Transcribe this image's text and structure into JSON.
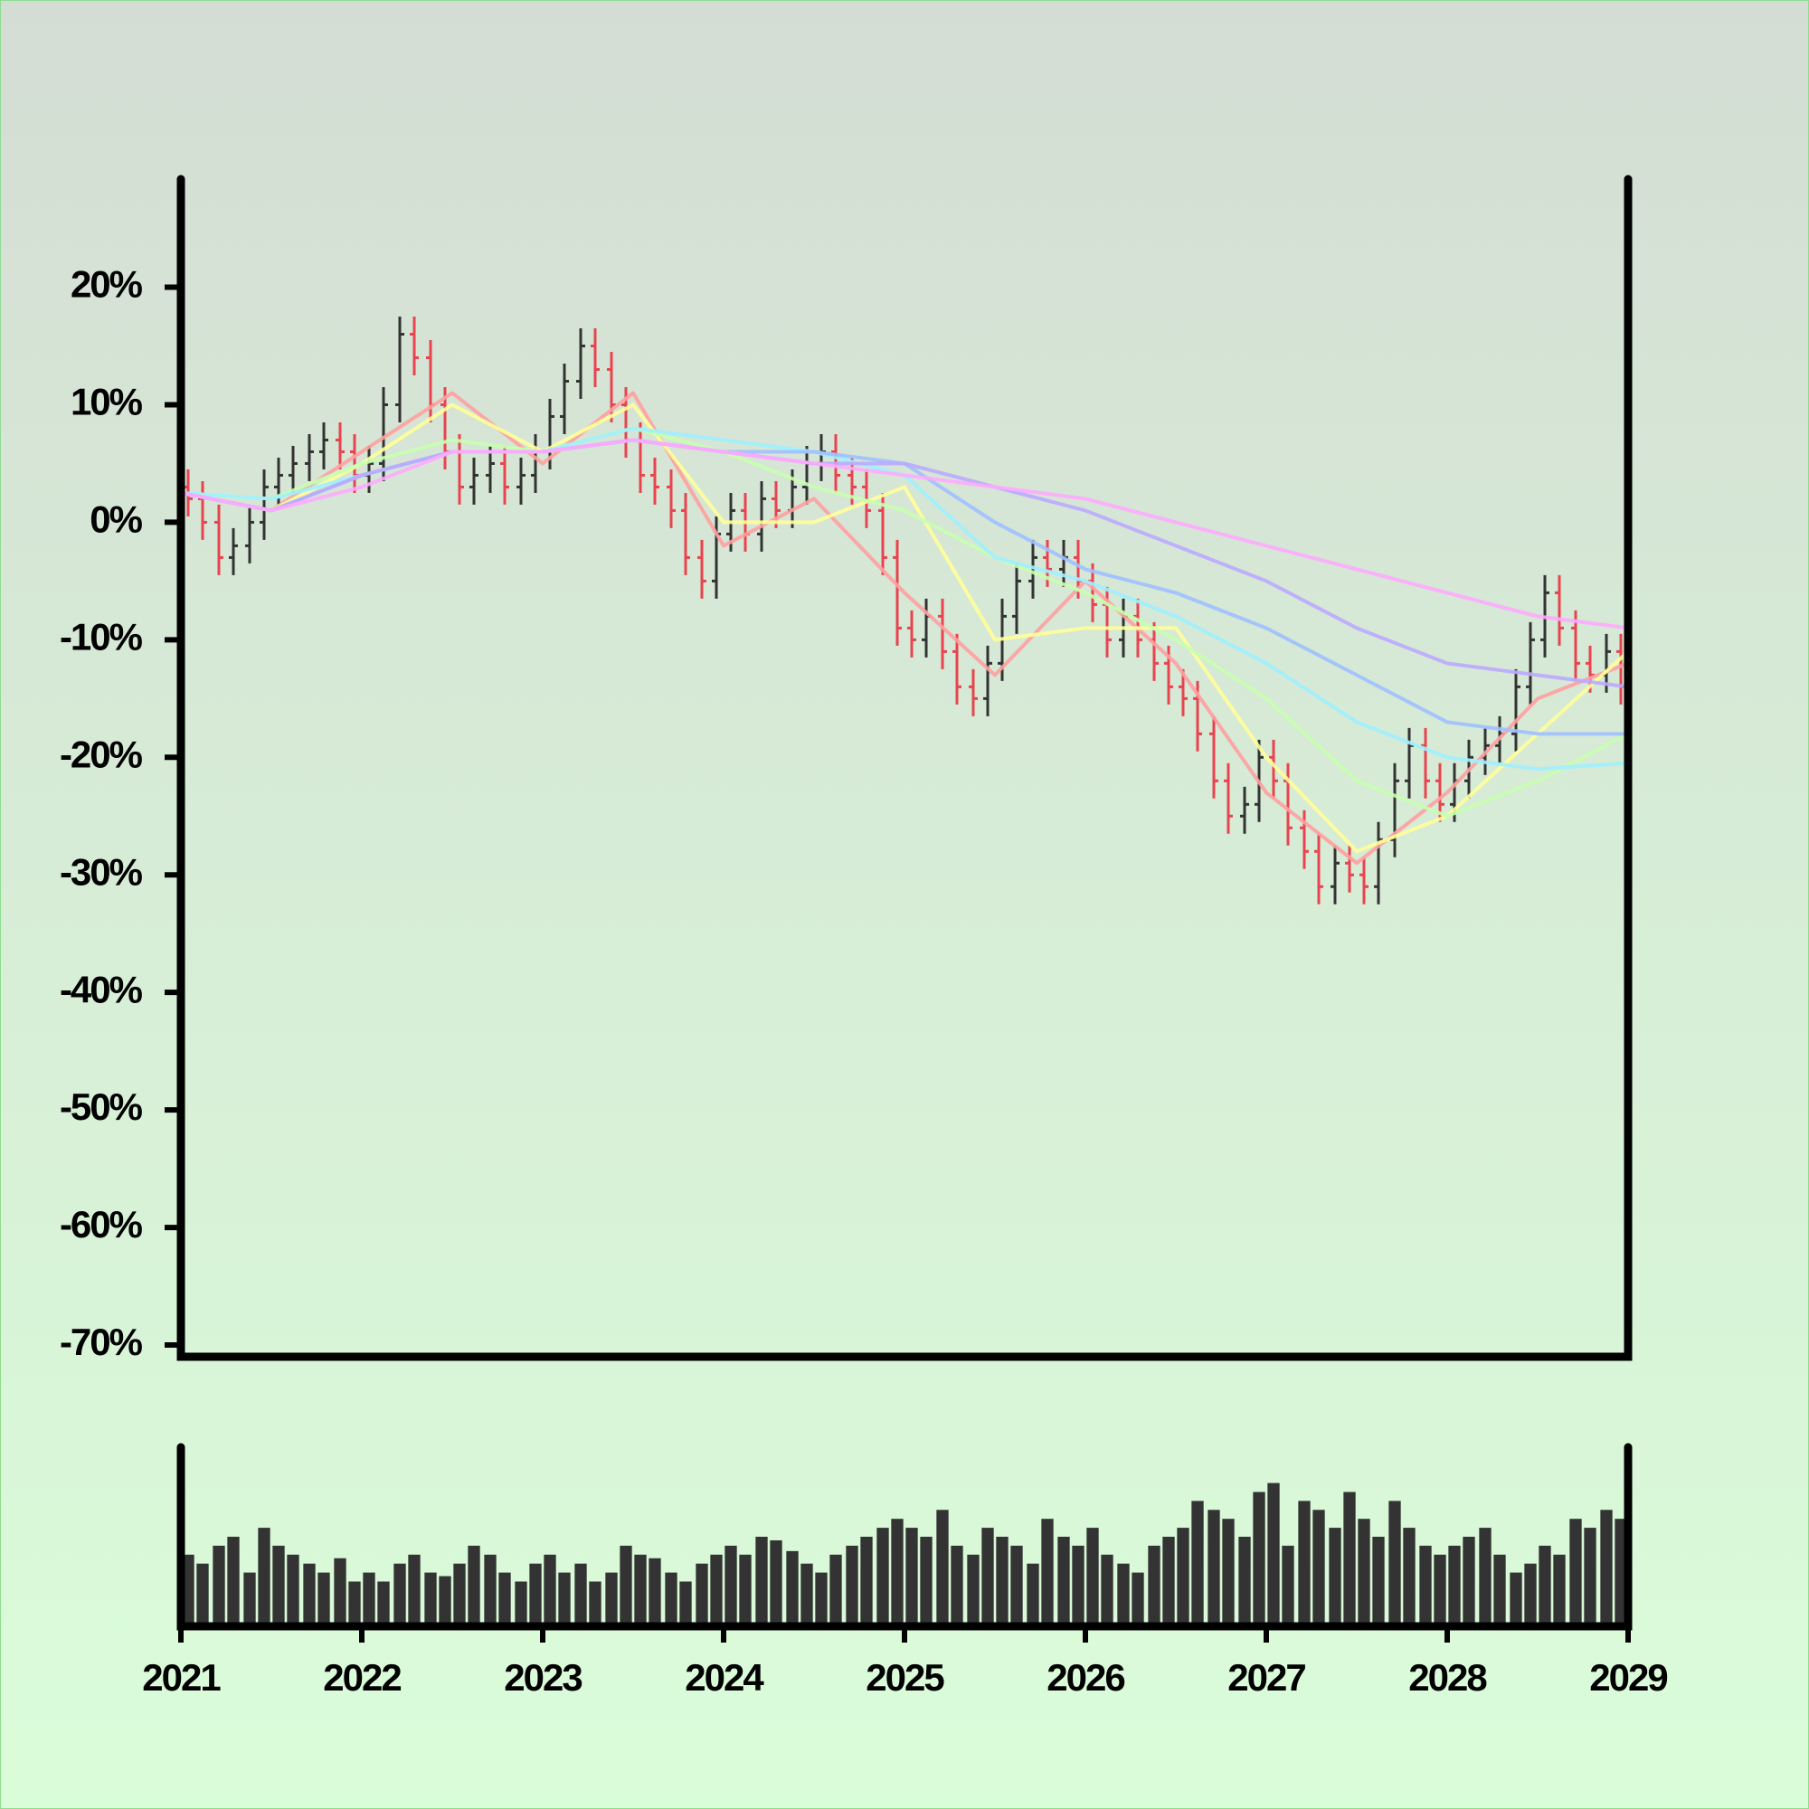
{
  "chart_data": [
    {
      "type": "ohlc",
      "xlim": [
        2021,
        2029
      ],
      "ylim": [
        -71,
        29.2
      ],
      "yticks": [
        {
          "value": 20,
          "label": "20%"
        },
        {
          "value": 10,
          "label": "10%"
        },
        {
          "value": 0,
          "label": "0%"
        },
        {
          "value": -10,
          "label": "-10%"
        },
        {
          "value": -20,
          "label": "-20%"
        },
        {
          "value": -30,
          "label": "-30%"
        },
        {
          "value": -40,
          "label": "-40%"
        },
        {
          "value": -50,
          "label": "-50%"
        },
        {
          "value": -60,
          "label": "-60%"
        },
        {
          "value": -70,
          "label": "-70%"
        }
      ],
      "up_color": "#333333",
      "down_color": "#e8444f",
      "x": [
        2021.04,
        2021.12,
        2021.21,
        2021.29,
        2021.38,
        2021.46,
        2021.54,
        2021.62,
        2021.71,
        2021.79,
        2021.88,
        2021.96,
        2022.04,
        2022.12,
        2022.21,
        2022.29,
        2022.38,
        2022.46,
        2022.54,
        2022.62,
        2022.71,
        2022.79,
        2022.88,
        2022.96,
        2023.04,
        2023.12,
        2023.21,
        2023.29,
        2023.38,
        2023.46,
        2023.54,
        2023.62,
        2023.71,
        2023.79,
        2023.88,
        2023.96,
        2024.04,
        2024.12,
        2024.21,
        2024.29,
        2024.38,
        2024.46,
        2024.54,
        2024.62,
        2024.71,
        2024.79,
        2024.88,
        2024.96,
        2025.04,
        2025.12,
        2025.21,
        2025.29,
        2025.38,
        2025.46,
        2025.54,
        2025.62,
        2025.71,
        2025.79,
        2025.88,
        2025.96,
        2026.04,
        2026.12,
        2026.21,
        2026.29,
        2026.38,
        2026.46,
        2026.54,
        2026.62,
        2026.71,
        2026.79,
        2026.88,
        2026.96,
        2027.04,
        2027.12,
        2027.21,
        2027.29,
        2027.38,
        2027.46,
        2027.54,
        2027.62,
        2027.71,
        2027.79,
        2027.88,
        2027.96,
        2028.04,
        2028.12,
        2028.21,
        2028.29,
        2028.38,
        2028.46,
        2028.54,
        2028.62,
        2028.71,
        2028.79,
        2028.88,
        2028.96
      ],
      "open": [
        3,
        2,
        0,
        -3,
        -2,
        0,
        3,
        4,
        5,
        6,
        7,
        6,
        4,
        5,
        10,
        16,
        14,
        10,
        6,
        3,
        4,
        5,
        3,
        4,
        6,
        9,
        12,
        15,
        13,
        10,
        7,
        4,
        3,
        1,
        -3,
        -5,
        -1,
        1,
        -1,
        2,
        1,
        3,
        5,
        6,
        4,
        3,
        1,
        -3,
        -9,
        -10,
        -8,
        -11,
        -14,
        -15,
        -12,
        -8,
        -5,
        -3,
        -4,
        -3,
        -5,
        -7,
        -10,
        -8,
        -10,
        -12,
        -14,
        -15,
        -18,
        -22,
        -25,
        -24,
        -20,
        -22,
        -26,
        -28,
        -31,
        -29,
        -30,
        -31,
        -27,
        -22,
        -19,
        -22,
        -24,
        -22,
        -20,
        -19,
        -18,
        -14,
        -10,
        -6,
        -9,
        -12,
        -13,
        -11
      ],
      "high": [
        4.5,
        3.5,
        1.5,
        -0.5,
        1.5,
        4.5,
        5.5,
        6.5,
        7.5,
        8.5,
        8.5,
        7.5,
        6.5,
        11.5,
        17.5,
        17.5,
        15.5,
        11.5,
        7.5,
        5.5,
        6.5,
        6.5,
        5.5,
        7.5,
        10.5,
        13.5,
        16.5,
        16.5,
        14.5,
        11.5,
        8.5,
        5.5,
        4.5,
        2.5,
        -1.5,
        0.5,
        2.5,
        2.5,
        3.5,
        3.5,
        4.5,
        6.5,
        7.5,
        7.5,
        5.5,
        4.5,
        2.5,
        -1.5,
        -7.5,
        -6.5,
        -6.5,
        -9.5,
        -12.5,
        -10.5,
        -6.5,
        -3.5,
        -1.5,
        -1.5,
        -1.5,
        -1.5,
        -3.5,
        -5.5,
        -6.5,
        -6.5,
        -8.5,
        -10.5,
        -12.5,
        -13.5,
        -16.5,
        -20.5,
        -22.5,
        -18.5,
        -18.5,
        -20.5,
        -24.5,
        -26.5,
        -27.5,
        -27.5,
        -28.5,
        -25.5,
        -20.5,
        -17.5,
        -17.5,
        -20.5,
        -20.5,
        -18.5,
        -17.5,
        -16.5,
        -12.5,
        -8.5,
        -4.5,
        -4.5,
        -7.5,
        -10.5,
        -9.5,
        -9.5
      ],
      "low": [
        0.5,
        -1.5,
        -4.5,
        -4.5,
        -3.5,
        -1.5,
        1.5,
        2.5,
        3.5,
        4.5,
        4.5,
        2.5,
        2.5,
        3.5,
        8.5,
        12.5,
        8.5,
        4.5,
        1.5,
        1.5,
        2.5,
        1.5,
        1.5,
        2.5,
        4.5,
        7.5,
        10.5,
        11.5,
        8.5,
        5.5,
        2.5,
        1.5,
        -0.5,
        -4.5,
        -6.5,
        -6.5,
        -2.5,
        -2.5,
        -2.5,
        -0.5,
        -0.5,
        1.5,
        3.5,
        2.5,
        1.5,
        -0.5,
        -4.5,
        -10.5,
        -11.5,
        -11.5,
        -12.5,
        -15.5,
        -16.5,
        -16.5,
        -13.5,
        -9.5,
        -6.5,
        -5.5,
        -5.5,
        -6.5,
        -8.5,
        -11.5,
        -11.5,
        -11.5,
        -13.5,
        -15.5,
        -16.5,
        -19.5,
        -23.5,
        -26.5,
        -26.5,
        -25.5,
        -23.5,
        -27.5,
        -29.5,
        -32.5,
        -32.5,
        -31.5,
        -32.5,
        -32.5,
        -28.5,
        -23.5,
        -23.5,
        -25.5,
        -25.5,
        -23.5,
        -21.5,
        -20.5,
        -19.5,
        -15.5,
        -11.5,
        -10.5,
        -13.5,
        -14.5,
        -14.5,
        -15.5
      ],
      "close": [
        2,
        0,
        -3,
        -2,
        0,
        3,
        4,
        5,
        6,
        7,
        6,
        4,
        5,
        10,
        16,
        14,
        10,
        6,
        3,
        4,
        5,
        3,
        4,
        6,
        9,
        12,
        15,
        13,
        10,
        7,
        4,
        3,
        1,
        -3,
        -5,
        -1,
        1,
        -1,
        2,
        1,
        3,
        5,
        6,
        4,
        3,
        1,
        -3,
        -9,
        -10,
        -8,
        -11,
        -14,
        -15,
        -12,
        -8,
        -5,
        -3,
        -4,
        -3,
        -5,
        -7,
        -10,
        -8,
        -10,
        -12,
        -14,
        -15,
        -18,
        -22,
        -25,
        -24,
        -20,
        -22,
        -26,
        -28,
        -31,
        -29,
        -30,
        -31,
        -27,
        -22,
        -19,
        -22,
        -24,
        -22,
        -20,
        -19,
        -18,
        -14,
        -10,
        -6,
        -9,
        -12,
        -13,
        -11,
        -14
      ],
      "ma_x": [
        2021,
        2021.5,
        2022,
        2022.5,
        2023,
        2023.5,
        2024,
        2024.5,
        2025,
        2025.5,
        2026,
        2026.5,
        2027,
        2027.5,
        2028,
        2028.5,
        2029
      ],
      "lines": [
        {
          "color": "#ffa0a0",
          "values": [
            2.5,
            1,
            6,
            11,
            5,
            11,
            -2,
            2,
            -6,
            -13,
            -5,
            -12,
            -23,
            -29,
            -23,
            -15,
            -12
          ]
        },
        {
          "color": "#ffff99",
          "values": [
            2.5,
            1,
            5,
            10,
            6,
            10,
            0,
            0,
            3,
            -10,
            -9,
            -9,
            -20,
            -28,
            -25,
            -18,
            -11
          ]
        },
        {
          "color": "#c8ffb0",
          "values": [
            2.5,
            2,
            5,
            7,
            6,
            8,
            6,
            3,
            1,
            -3,
            -6,
            -10,
            -15,
            -22,
            -25,
            -22,
            -18
          ]
        },
        {
          "color": "#a0f0ff",
          "values": [
            2.5,
            2,
            4,
            6,
            6,
            8,
            7,
            6,
            4,
            -3,
            -5,
            -8,
            -12,
            -17,
            -20,
            -21,
            -20.5
          ]
        },
        {
          "color": "#a0c0ff",
          "values": [
            2.5,
            1,
            4,
            6,
            6,
            7,
            6,
            6,
            5,
            0,
            -4,
            -6,
            -9,
            -13,
            -17,
            -18,
            -18
          ]
        },
        {
          "color": "#bbaaff",
          "values": [
            2.5,
            1,
            4,
            6,
            6,
            7,
            6,
            5,
            5,
            3,
            1,
            -2,
            -5,
            -9,
            -12,
            -13,
            -14
          ]
        },
        {
          "color": "#ffaaff",
          "values": [
            2.5,
            1,
            3,
            6,
            6,
            7,
            6,
            5,
            4,
            3,
            2,
            0,
            -2,
            -4,
            -6,
            -8,
            -9
          ]
        }
      ]
    },
    {
      "type": "bar",
      "color": "#333333",
      "ylim": [
        0,
        100
      ],
      "xlim": [
        2021,
        2029
      ],
      "xticks": [
        2021,
        2022,
        2023,
        2024,
        2025,
        2026,
        2027,
        2028,
        2029
      ],
      "values": [
        40,
        35,
        45,
        50,
        30,
        55,
        45,
        40,
        35,
        30,
        38,
        25,
        30,
        25,
        35,
        40,
        30,
        28,
        35,
        45,
        40,
        30,
        25,
        35,
        40,
        30,
        35,
        25,
        30,
        45,
        40,
        38,
        30,
        25,
        35,
        40,
        45,
        40,
        50,
        48,
        42,
        35,
        30,
        40,
        45,
        50,
        55,
        60,
        55,
        50,
        65,
        45,
        40,
        55,
        50,
        45,
        35,
        60,
        50,
        45,
        55,
        40,
        35,
        30,
        45,
        50,
        55,
        70,
        65,
        60,
        50,
        75,
        80,
        45,
        70,
        65,
        55,
        75,
        60,
        50,
        70,
        55,
        45,
        40,
        45,
        50,
        55,
        40,
        30,
        35,
        45,
        40,
        60,
        55,
        65,
        60
      ]
    }
  ]
}
